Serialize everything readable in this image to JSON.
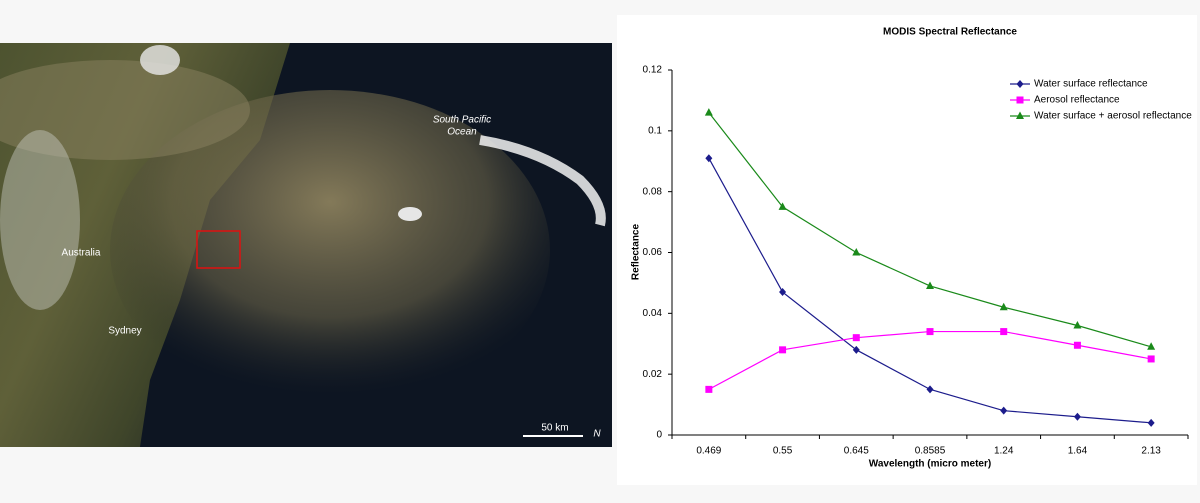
{
  "image": {
    "labels": [
      "South Pacific",
      "Ocean",
      "Australia",
      "Sydney"
    ],
    "scale_bar": "50 km",
    "north": "N"
  },
  "chart_data": {
    "type": "line",
    "title": "MODIS Spectral Reflectance",
    "x_label": "Wavelength (micro meter)",
    "y_label": "Reflectance",
    "categories": [
      "0.469",
      "0.55",
      "0.645",
      "0.8585",
      "1.24",
      "1.64",
      "2.13"
    ],
    "series": [
      {
        "name": "Water surface reflectance",
        "color": "#1c1c8c",
        "marker": "diamond",
        "values": [
          0.091,
          0.047,
          0.028,
          0.015,
          0.008,
          0.006,
          0.004
        ]
      },
      {
        "name": "Aerosol reflectance",
        "color": "#ff00ff",
        "marker": "square",
        "values": [
          0.015,
          0.028,
          0.032,
          0.034,
          0.034,
          0.0295,
          0.025
        ]
      },
      {
        "name": "Water surface + aerosol reflectance",
        "color": "#1a8a1a",
        "marker": "triangle",
        "values": [
          0.106,
          0.075,
          0.06,
          0.049,
          0.042,
          0.036,
          0.029
        ]
      }
    ],
    "ylim": [
      0,
      0.12
    ],
    "yticks": [
      0,
      0.02,
      0.04,
      0.06,
      0.08,
      0.1,
      0.12
    ],
    "grid": false,
    "legend": "top-right"
  }
}
